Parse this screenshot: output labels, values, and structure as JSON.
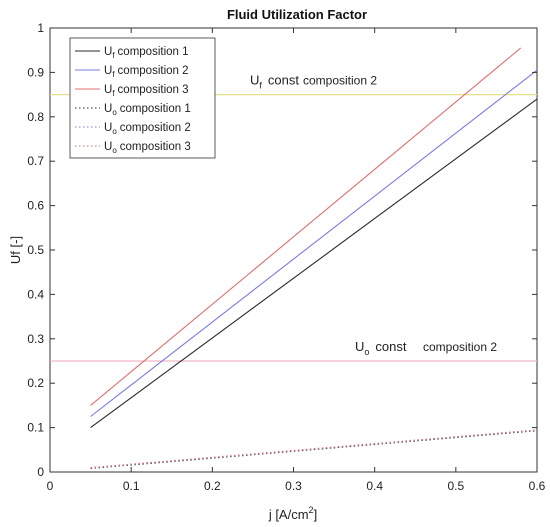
{
  "chart_data": {
    "type": "line",
    "title": "Fluid Utilization Factor",
    "xlabel": "j [A/cm2]",
    "xlabel_parts": {
      "base": "j [A/cm",
      "sup": "2",
      "tail": "]"
    },
    "ylabel": "Uf [-]",
    "xlim": [
      0,
      0.6
    ],
    "ylim": [
      0,
      1
    ],
    "xticks": [
      0,
      0.1,
      0.2,
      0.3,
      0.4,
      0.5,
      0.6
    ],
    "xtick_labels": [
      "0",
      "0.1",
      "0.2",
      "0.3",
      "0.4",
      "0.5",
      "0.6"
    ],
    "yticks": [
      0,
      0.1,
      0.2,
      0.3,
      0.4,
      0.5,
      0.6,
      0.7,
      0.8,
      0.9,
      1
    ],
    "ytick_labels": [
      "0",
      "0.1",
      "0.2",
      "0.3",
      "0.4",
      "0.5",
      "0.6",
      "0.7",
      "0.8",
      "0.9",
      "1"
    ],
    "grid": false,
    "legend_position": "top-left",
    "series": [
      {
        "name": "Uf composition 1",
        "name_parts": {
          "sym": "U",
          "sub": "f",
          "text": "composition 1"
        },
        "style": "solid",
        "color": "#2a2a2a",
        "x": [
          0.05,
          0.6
        ],
        "y": [
          0.1,
          0.84
        ]
      },
      {
        "name": "Uf composition 2",
        "name_parts": {
          "sym": "U",
          "sub": "f",
          "text": "composition 2"
        },
        "style": "solid",
        "color": "#7a7ae0",
        "x": [
          0.05,
          0.6
        ],
        "y": [
          0.125,
          0.905
        ]
      },
      {
        "name": "Uf composition 3",
        "name_parts": {
          "sym": "U",
          "sub": "f",
          "text": "composition 3"
        },
        "style": "solid",
        "color": "#e07070",
        "x": [
          0.05,
          0.58
        ],
        "y": [
          0.15,
          0.955
        ]
      },
      {
        "name": "Uo composition 1",
        "name_parts": {
          "sym": "U",
          "sub": "o",
          "text": "composition 1"
        },
        "style": "dotted",
        "color": "#2a2a2a",
        "x": [
          0.05,
          0.6
        ],
        "y": [
          0.008,
          0.093
        ]
      },
      {
        "name": "Uo composition 2",
        "name_parts": {
          "sym": "U",
          "sub": "o",
          "text": "composition 2"
        },
        "style": "dotted",
        "color": "#7a7ae0",
        "x": [
          0.05,
          0.6
        ],
        "y": [
          0.009,
          0.094
        ]
      },
      {
        "name": "Uo composition 3",
        "name_parts": {
          "sym": "U",
          "sub": "o",
          "text": "composition 3"
        },
        "style": "dotted",
        "color": "#e07070",
        "x": [
          0.05,
          0.6
        ],
        "y": [
          0.01,
          0.095
        ]
      }
    ],
    "reference_lines": [
      {
        "label_sym": "U",
        "label_sub": "f",
        "label_text": "const",
        "label_extra": "composition 2",
        "y": 0.85,
        "color": "#e6e08a"
      },
      {
        "label_sym": "U",
        "label_sub": "o",
        "label_text": "const",
        "label_extra": "composition 2",
        "y": 0.25,
        "color": "#f0b8c4"
      }
    ]
  }
}
